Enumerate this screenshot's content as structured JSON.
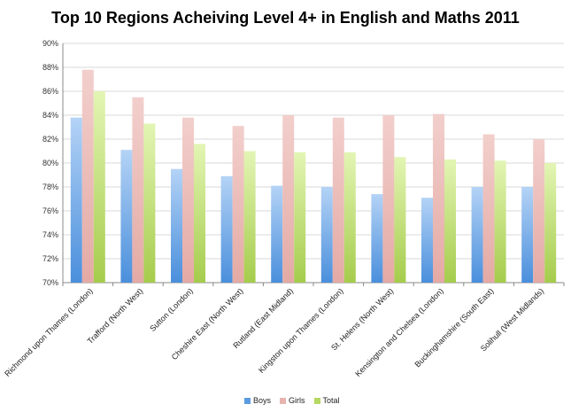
{
  "chart_data": {
    "type": "bar",
    "title": "Top 10 Regions Acheiving Level 4+ in English and Maths 2011",
    "categories": [
      "Richmond upon Thames (London)",
      "Trafford (North West)",
      "Sutton (London)",
      "Cheshire East (North West)",
      "Rutland (East Midland)",
      "Kingston upon Thames (London)",
      "St. Helens (North West)",
      "Kensington and Chelsea (London)",
      "Buckinghamshire (South East)",
      "Solihull (West Midlands)"
    ],
    "series": [
      {
        "name": "Boys",
        "values": [
          83.8,
          81.1,
          79.5,
          78.9,
          78.1,
          78.0,
          77.4,
          77.1,
          78.0,
          78.0
        ]
      },
      {
        "name": "Girls",
        "values": [
          87.8,
          85.5,
          83.8,
          83.1,
          84.0,
          83.8,
          84.0,
          84.1,
          82.4,
          82.0
        ]
      },
      {
        "name": "Total",
        "values": [
          86.0,
          83.3,
          81.6,
          81.0,
          80.9,
          80.9,
          80.5,
          80.3,
          80.2,
          80.0
        ]
      }
    ],
    "ylim": [
      70,
      90
    ],
    "yticks": [
      "70%",
      "72%",
      "74%",
      "76%",
      "78%",
      "80%",
      "82%",
      "84%",
      "86%",
      "88%",
      "90%"
    ],
    "colors": {
      "Boys": "#7fb2ea",
      "Girls": "#eab9b5",
      "Total": "#cbe58a"
    },
    "grid": true,
    "legend_position": "bottom"
  }
}
